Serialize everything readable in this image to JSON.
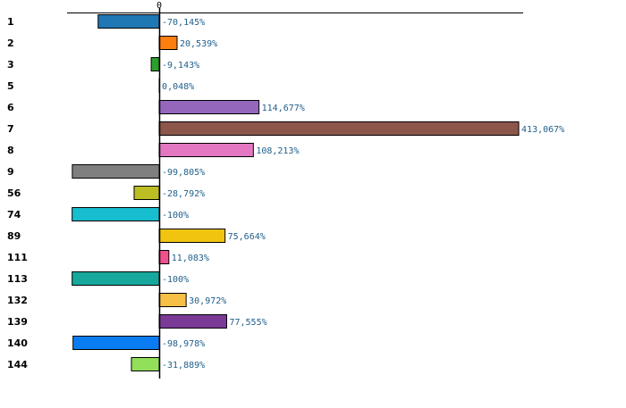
{
  "chart_data": {
    "type": "bar",
    "orientation": "horizontal",
    "title": "",
    "xlabel": "",
    "ylabel": "",
    "xlim": [
      -105,
      415
    ],
    "zero_tick_label": "0",
    "grid": false,
    "legend": "none",
    "categories": [
      "1",
      "2",
      "3",
      "5",
      "6",
      "7",
      "8",
      "9",
      "56",
      "74",
      "89",
      "111",
      "113",
      "132",
      "139",
      "140",
      "144"
    ],
    "values": [
      -70.145,
      20.539,
      -9.143,
      0.048,
      114.677,
      413.067,
      108.213,
      -99.805,
      -28.792,
      -100,
      75.664,
      11.083,
      -100,
      30.972,
      77.555,
      -98.978,
      -31.889
    ],
    "value_labels": [
      "-70,145%",
      "20,539%",
      "-9,143%",
      "0,048%",
      "114,677%",
      "413,067%",
      "108,213%",
      "-99,805%",
      "-28,792%",
      "-100%",
      "75,664%",
      "11,083%",
      "-100%",
      "30,972%",
      "77,555%",
      "-98,978%",
      "-31,889%"
    ],
    "colors": [
      "#1f77b4",
      "#ff7f0e",
      "#2ca02c",
      "#d62728",
      "#9467bd",
      "#8c564b",
      "#e377c2",
      "#7f7f7f",
      "#bcbd22",
      "#17becf",
      "#f1c40f",
      "#f0508c",
      "#16a89c",
      "#f7bf45",
      "#7a3a96",
      "#0a7cf2",
      "#92e05a"
    ]
  }
}
